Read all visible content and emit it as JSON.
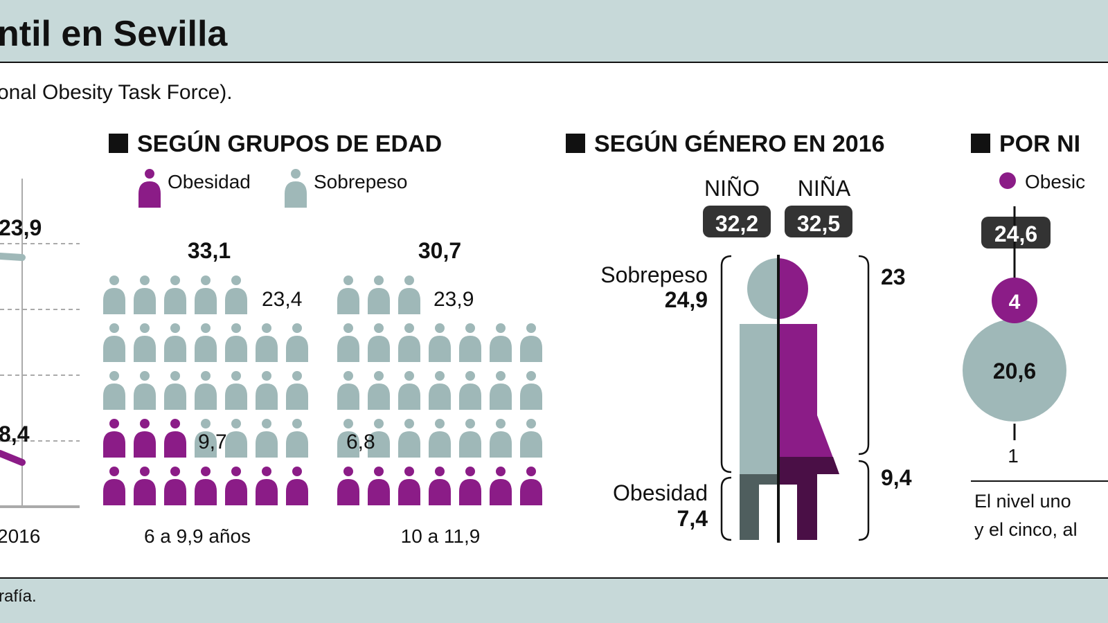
{
  "header": {
    "title": "ntil en Sevilla",
    "subtitle": "onal Obesity Task Force)."
  },
  "footer": {
    "source": "rafía."
  },
  "colors": {
    "obesidad": "#8b1c87",
    "sobrepeso": "#9fb8b8",
    "band": "#c7d9d9",
    "dark": "#333333"
  },
  "chart_data": [
    {
      "type": "line",
      "x_tick_labels": [
        "2016"
      ],
      "series": [
        {
          "name": "Sobrepeso",
          "x": [
            "2016"
          ],
          "values": [
            23.9
          ],
          "label": "23,9"
        },
        {
          "name": "Obesidad",
          "x": [
            "2016"
          ],
          "values": [
            8.4
          ],
          "label": "8,4"
        }
      ],
      "grid": true
    },
    {
      "type": "pictogram",
      "title": "SEGÚN GRUPOS DE EDAD",
      "legend": [
        "Obesidad",
        "Sobrepeso"
      ],
      "groups": [
        {
          "label": "6 a 9,9 años",
          "total": "33,1",
          "sobrepeso": "23,4",
          "obesidad": "9,7",
          "icons_obesidad": 10,
          "icons_sobrepeso": 23,
          "top_row": 5
        },
        {
          "label": "10 a 11,9",
          "total": "30,7",
          "sobrepeso": "23,9",
          "obesidad": "6,8",
          "icons_obesidad": 7,
          "icons_sobrepeso": 24,
          "top_row": 3
        }
      ]
    },
    {
      "type": "figure",
      "title": "SEGÚN GÉNERO EN 2016",
      "boy": {
        "label": "NIÑO",
        "total": "32,2",
        "sobrepeso": "24,9",
        "obesidad": "7,4"
      },
      "girl": {
        "label": "NIÑA",
        "total": "32,5",
        "sobrepeso": "23",
        "obesidad": "9,4"
      },
      "sobrepeso_label": "Sobrepeso",
      "obesidad_label": "Obesidad"
    },
    {
      "type": "bubble",
      "title": "POR NI",
      "legend": [
        "Obesic"
      ],
      "levels": [
        {
          "level": "1",
          "total": "24,6",
          "obesidad": "4",
          "sobrepeso": "20,6"
        }
      ],
      "note_lines": [
        "El nivel uno",
        "y el cinco, al"
      ]
    }
  ]
}
